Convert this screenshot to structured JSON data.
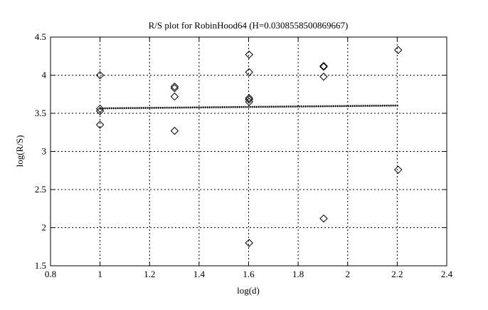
{
  "chart_data": {
    "type": "scatter",
    "title": "R/S plot for RobinHood64 (H=0.0308558500869667)",
    "xlabel": "log(d)",
    "ylabel": "log(R/S)",
    "xlim": [
      0.8,
      2.4
    ],
    "ylim": [
      1.5,
      4.5
    ],
    "xticks": [
      0.8,
      1,
      1.2,
      1.4,
      1.6,
      1.8,
      2,
      2.2,
      2.4
    ],
    "yticks": [
      1.5,
      2,
      2.5,
      3,
      3.5,
      4,
      4.5
    ],
    "xtick_labels": [
      "0.8",
      "1",
      "1.2",
      "1.4",
      "1.6",
      "1.8",
      "2",
      "2.2",
      "2.4"
    ],
    "ytick_labels": [
      "1.5",
      "2",
      "2.5",
      "3",
      "3.5",
      "4",
      "4.5"
    ],
    "grid": true,
    "marker": "diamond",
    "points": [
      {
        "x": 1.0,
        "y": 4.0
      },
      {
        "x": 1.0,
        "y": 3.56
      },
      {
        "x": 1.0,
        "y": 3.53
      },
      {
        "x": 1.0,
        "y": 3.35
      },
      {
        "x": 1.301,
        "y": 3.85
      },
      {
        "x": 1.301,
        "y": 3.83
      },
      {
        "x": 1.301,
        "y": 3.72
      },
      {
        "x": 1.301,
        "y": 3.27
      },
      {
        "x": 1.602,
        "y": 4.27
      },
      {
        "x": 1.602,
        "y": 4.04
      },
      {
        "x": 1.602,
        "y": 3.7
      },
      {
        "x": 1.602,
        "y": 3.68
      },
      {
        "x": 1.602,
        "y": 3.65
      },
      {
        "x": 1.602,
        "y": 1.8
      },
      {
        "x": 1.903,
        "y": 4.12
      },
      {
        "x": 1.903,
        "y": 4.11
      },
      {
        "x": 1.903,
        "y": 3.98
      },
      {
        "x": 1.903,
        "y": 2.12
      },
      {
        "x": 2.204,
        "y": 4.33
      },
      {
        "x": 2.204,
        "y": 2.76
      }
    ],
    "fit_line": {
      "x": [
        1.0,
        2.204
      ],
      "y": [
        3.565,
        3.602
      ],
      "style": "dotted"
    }
  }
}
